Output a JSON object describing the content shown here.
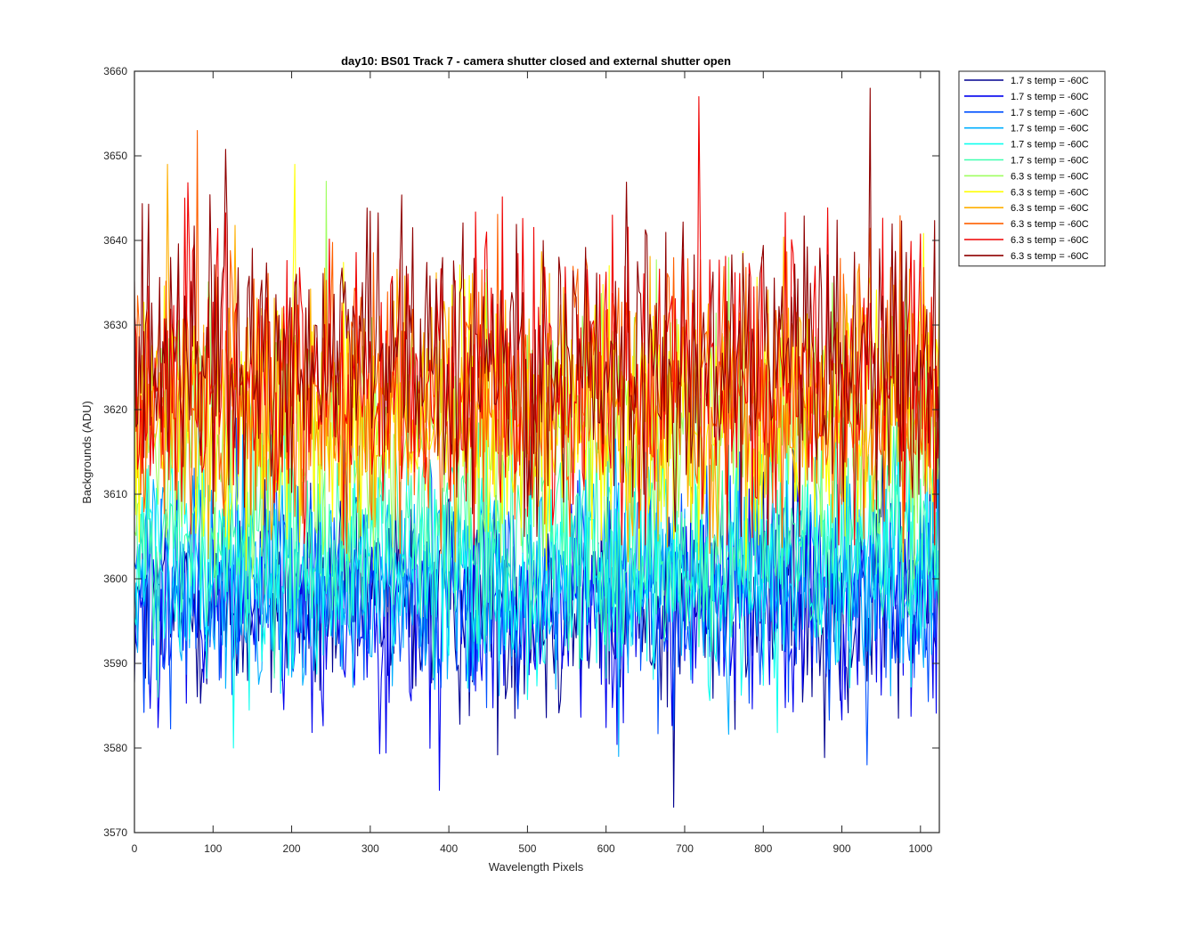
{
  "chart_data": {
    "type": "line",
    "title": "day10: BS01  Track 7 - camera shutter closed and external shutter open",
    "xlabel": "Wavelength Pixels",
    "ylabel": "Backgrounds (ADU)",
    "xlim": [
      0,
      1024
    ],
    "ylim": [
      3570,
      3660
    ],
    "xticks": [
      0,
      100,
      200,
      300,
      400,
      500,
      600,
      700,
      800,
      900,
      1000
    ],
    "yticks": [
      3570,
      3580,
      3590,
      3600,
      3610,
      3620,
      3630,
      3640,
      3650,
      3660
    ],
    "grid": false,
    "legend_position": "outside-top-right",
    "series": [
      {
        "name": "1.7 s temp = -60C",
        "color": "#00008F",
        "mean": 3597,
        "min": 3573,
        "max": 3616
      },
      {
        "name": "1.7 s temp = -60C",
        "color": "#0000EF",
        "mean": 3597,
        "min": 3575,
        "max": 3617
      },
      {
        "name": "1.7 s temp = -60C",
        "color": "#0050FF",
        "mean": 3599,
        "min": 3578,
        "max": 3619
      },
      {
        "name": "1.7 s temp = -60C",
        "color": "#00AFFF",
        "mean": 3600,
        "min": 3579,
        "max": 3620
      },
      {
        "name": "1.7 s temp = -60C",
        "color": "#10FFEF",
        "mean": 3601,
        "min": 3580,
        "max": 3622
      },
      {
        "name": "1.7 s temp = -60C",
        "color": "#40FFAF",
        "mean": 3605,
        "min": 3586,
        "max": 3625
      },
      {
        "name": "6.3 s temp = -60C",
        "color": "#9FFF60",
        "mean": 3618,
        "min": 3600,
        "max": 3647
      },
      {
        "name": "6.3 s temp = -60C",
        "color": "#FFFF00",
        "mean": 3620,
        "min": 3601,
        "max": 3649
      },
      {
        "name": "6.3 s temp = -60C",
        "color": "#FFAF00",
        "mean": 3621,
        "min": 3602,
        "max": 3649
      },
      {
        "name": "6.3 s temp = -60C",
        "color": "#FF6000",
        "mean": 3622,
        "min": 3603,
        "max": 3653
      },
      {
        "name": "6.3 s temp = -60C",
        "color": "#EF0000",
        "mean": 3624,
        "min": 3604,
        "max": 3657
      },
      {
        "name": "6.3 s temp = -60C",
        "color": "#8F0000",
        "mean": 3626,
        "min": 3605,
        "max": 3658
      }
    ]
  }
}
